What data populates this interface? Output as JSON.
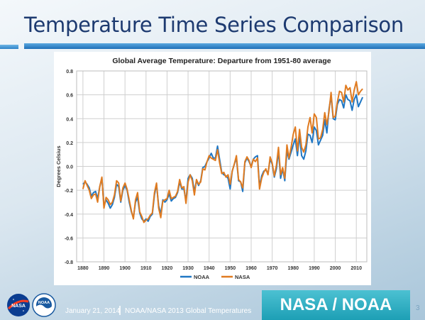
{
  "slide": {
    "title": "Temperature Time Series Comparison",
    "date": "January 21, 2014",
    "source": "NOAA/NASA 2013 Global Temperatures",
    "brand": "NASA / NOAA",
    "page_number": "3",
    "logos": [
      {
        "name": "nasa-logo",
        "text": "NASA"
      },
      {
        "name": "noaa-logo",
        "text": "NOAA"
      }
    ]
  },
  "colors": {
    "title": "#1d3a70",
    "accent_blue": "#2e82c8",
    "brand_teal": "#1d9fb5",
    "noaa": "#1f77c4",
    "nasa": "#e07b20"
  },
  "chart_data": {
    "type": "line",
    "title": "Global Average Temperature: Departure from 1951-80 average",
    "xlabel": "",
    "ylabel": "Degrees Celsius",
    "xlim": [
      1877,
      2015
    ],
    "ylim": [
      -0.8,
      0.8
    ],
    "x_ticks": [
      "1880",
      "1890",
      "1900",
      "1910",
      "1920",
      "1930",
      "1940",
      "1950",
      "1960",
      "1970",
      "1980",
      "1990",
      "2000",
      "2010"
    ],
    "y_ticks": [
      "0.8",
      "0.6",
      "0.4",
      "0.2",
      "0.0",
      "-0.2",
      "-0.4",
      "-0.6",
      "-0.8"
    ],
    "grid": true,
    "legend_position": "bottom",
    "x": [
      1880,
      1881,
      1882,
      1883,
      1884,
      1885,
      1886,
      1887,
      1888,
      1889,
      1890,
      1891,
      1892,
      1893,
      1894,
      1895,
      1896,
      1897,
      1898,
      1899,
      1900,
      1901,
      1902,
      1903,
      1904,
      1905,
      1906,
      1907,
      1908,
      1909,
      1910,
      1911,
      1912,
      1913,
      1914,
      1915,
      1916,
      1917,
      1918,
      1919,
      1920,
      1921,
      1922,
      1923,
      1924,
      1925,
      1926,
      1927,
      1928,
      1929,
      1930,
      1931,
      1932,
      1933,
      1934,
      1935,
      1936,
      1937,
      1938,
      1939,
      1940,
      1941,
      1942,
      1943,
      1944,
      1945,
      1946,
      1947,
      1948,
      1949,
      1950,
      1951,
      1952,
      1953,
      1954,
      1955,
      1956,
      1957,
      1958,
      1959,
      1960,
      1961,
      1962,
      1963,
      1964,
      1965,
      1966,
      1967,
      1968,
      1969,
      1970,
      1971,
      1972,
      1973,
      1974,
      1975,
      1976,
      1977,
      1978,
      1979,
      1980,
      1981,
      1982,
      1983,
      1984,
      1985,
      1986,
      1987,
      1988,
      1989,
      1990,
      1991,
      1992,
      1993,
      1994,
      1995,
      1996,
      1997,
      1998,
      1999,
      2000,
      2001,
      2002,
      2003,
      2004,
      2005,
      2006,
      2007,
      2008,
      2009,
      2010,
      2011,
      2012,
      2013
    ],
    "series": [
      {
        "name": "NOAA",
        "color": "#1f77c4",
        "values": [
          -0.15,
          -0.13,
          -0.15,
          -0.18,
          -0.25,
          -0.22,
          -0.21,
          -0.27,
          -0.17,
          -0.1,
          -0.33,
          -0.28,
          -0.31,
          -0.35,
          -0.32,
          -0.26,
          -0.15,
          -0.17,
          -0.3,
          -0.2,
          -0.16,
          -0.2,
          -0.3,
          -0.38,
          -0.43,
          -0.3,
          -0.26,
          -0.39,
          -0.44,
          -0.46,
          -0.44,
          -0.46,
          -0.42,
          -0.4,
          -0.24,
          -0.15,
          -0.33,
          -0.4,
          -0.28,
          -0.3,
          -0.28,
          -0.23,
          -0.29,
          -0.27,
          -0.26,
          -0.22,
          -0.13,
          -0.19,
          -0.19,
          -0.29,
          -0.1,
          -0.07,
          -0.1,
          -0.21,
          -0.12,
          -0.16,
          -0.12,
          -0.01,
          0.0,
          0.04,
          0.07,
          0.11,
          0.07,
          0.07,
          0.17,
          0.06,
          -0.05,
          -0.07,
          -0.08,
          -0.1,
          -0.19,
          -0.04,
          0.02,
          0.07,
          -0.12,
          -0.13,
          -0.21,
          0.03,
          0.07,
          0.04,
          0.0,
          0.06,
          0.08,
          0.09,
          -0.17,
          -0.08,
          -0.04,
          -0.03,
          -0.06,
          0.06,
          0.02,
          -0.09,
          -0.02,
          0.13,
          -0.1,
          -0.02,
          -0.12,
          0.13,
          0.06,
          0.12,
          0.18,
          0.23,
          0.09,
          0.26,
          0.09,
          0.06,
          0.13,
          0.27,
          0.26,
          0.2,
          0.33,
          0.3,
          0.18,
          0.22,
          0.26,
          0.39,
          0.28,
          0.48,
          0.59,
          0.4,
          0.39,
          0.52,
          0.56,
          0.55,
          0.49,
          0.6,
          0.56,
          0.55,
          0.47,
          0.56,
          0.6,
          0.5,
          0.54,
          0.58
        ]
      },
      {
        "name": "NASA",
        "color": "#e07b20",
        "values": [
          -0.19,
          -0.12,
          -0.16,
          -0.2,
          -0.27,
          -0.24,
          -0.23,
          -0.3,
          -0.17,
          -0.09,
          -0.35,
          -0.26,
          -0.28,
          -0.32,
          -0.3,
          -0.24,
          -0.12,
          -0.14,
          -0.29,
          -0.18,
          -0.14,
          -0.19,
          -0.28,
          -0.37,
          -0.44,
          -0.28,
          -0.22,
          -0.38,
          -0.42,
          -0.47,
          -0.45,
          -0.44,
          -0.41,
          -0.39,
          -0.22,
          -0.14,
          -0.35,
          -0.43,
          -0.29,
          -0.28,
          -0.27,
          -0.2,
          -0.27,
          -0.26,
          -0.25,
          -0.21,
          -0.11,
          -0.18,
          -0.17,
          -0.31,
          -0.13,
          -0.07,
          -0.12,
          -0.24,
          -0.11,
          -0.15,
          -0.13,
          -0.02,
          -0.03,
          0.04,
          0.09,
          0.07,
          0.06,
          0.05,
          0.14,
          0.03,
          -0.06,
          -0.05,
          -0.09,
          -0.07,
          -0.15,
          -0.04,
          0.02,
          0.09,
          -0.11,
          -0.13,
          -0.18,
          0.04,
          0.08,
          0.05,
          -0.01,
          0.06,
          0.04,
          0.07,
          -0.19,
          -0.1,
          -0.05,
          -0.02,
          -0.07,
          0.08,
          0.03,
          -0.08,
          0.01,
          0.16,
          -0.07,
          -0.01,
          -0.1,
          0.18,
          0.07,
          0.16,
          0.27,
          0.33,
          0.13,
          0.31,
          0.16,
          0.12,
          0.18,
          0.33,
          0.41,
          0.28,
          0.44,
          0.41,
          0.23,
          0.24,
          0.31,
          0.45,
          0.35,
          0.46,
          0.62,
          0.41,
          0.42,
          0.54,
          0.63,
          0.62,
          0.54,
          0.68,
          0.64,
          0.66,
          0.54,
          0.64,
          0.71,
          0.6,
          0.63,
          0.65
        ]
      }
    ]
  }
}
